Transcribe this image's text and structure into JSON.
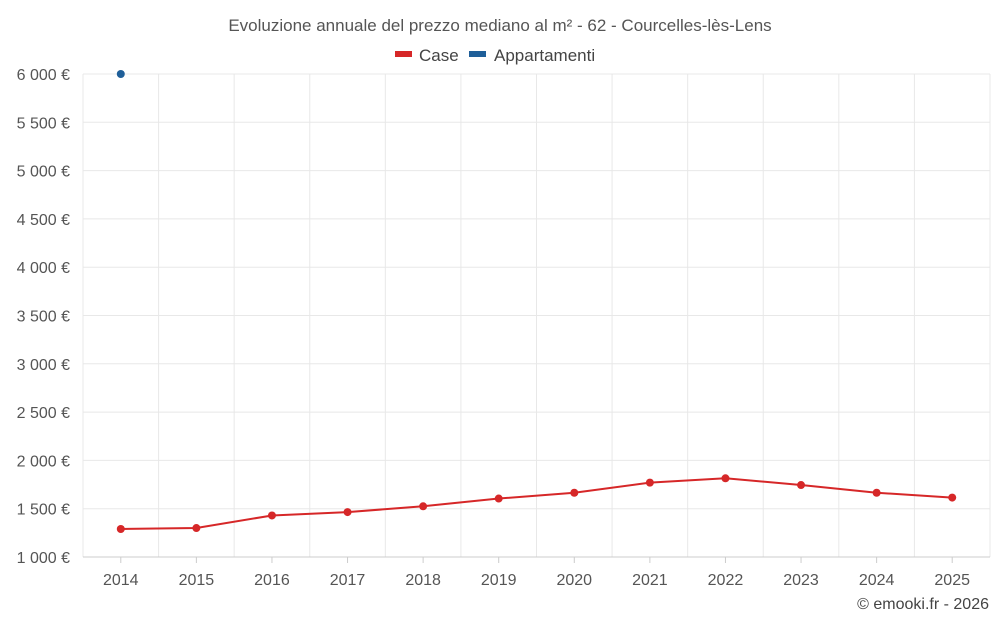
{
  "chart_data": {
    "type": "line",
    "title": "Evoluzione annuale del prezzo mediano al m² - 62 - Courcelles-lès-Lens",
    "categories": [
      "2014",
      "2015",
      "2016",
      "2017",
      "2018",
      "2019",
      "2020",
      "2021",
      "2022",
      "2023",
      "2024",
      "2025"
    ],
    "ylim": [
      1000,
      6000
    ],
    "yticks": [
      1000,
      1500,
      2000,
      2500,
      3000,
      3500,
      4000,
      4500,
      5000,
      5500,
      6000
    ],
    "ytick_labels": [
      "1 000 €",
      "1 500 €",
      "2 000 €",
      "2 500 €",
      "3 000 €",
      "3 500 €",
      "4 000 €",
      "4 500 €",
      "5 000 €",
      "5 500 €",
      "6 000 €"
    ],
    "grid": true,
    "legend_position": "top-center",
    "series": [
      {
        "name": "Case",
        "color": "#d62728",
        "values": [
          1290,
          1300,
          1430,
          1465,
          1525,
          1605,
          1665,
          1770,
          1815,
          1745,
          1665,
          1615
        ]
      },
      {
        "name": "Appartamenti",
        "color": "#1f5f99",
        "values": [
          6000,
          null,
          null,
          null,
          null,
          null,
          null,
          null,
          null,
          null,
          null,
          null
        ]
      }
    ]
  },
  "credit": "© emooki.fr - 2026"
}
